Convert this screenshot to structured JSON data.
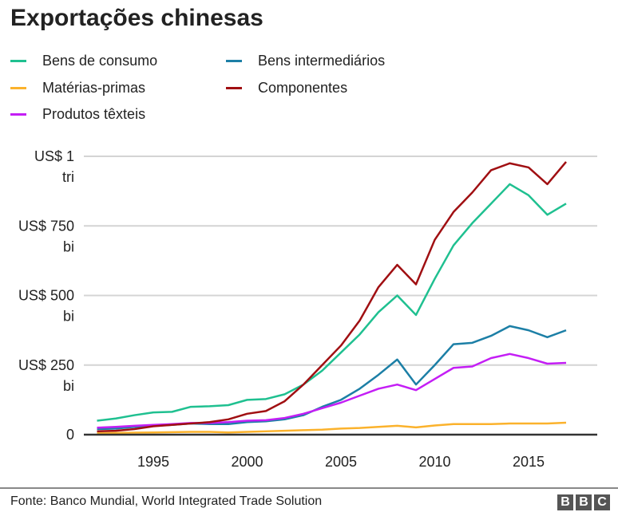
{
  "title": "Exportações chinesas",
  "source": "Fonte: Banco Mundial, World Integrated Trade Solution",
  "logo": "BBC",
  "chart_data": {
    "type": "line",
    "title": "Exportações chinesas",
    "x": [
      1992,
      1993,
      1994,
      1995,
      1996,
      1997,
      1998,
      1999,
      2000,
      2001,
      2002,
      2003,
      2004,
      2005,
      2006,
      2007,
      2008,
      2009,
      2010,
      2011,
      2012,
      2013,
      2014,
      2015,
      2016,
      2017
    ],
    "x_ticks": [
      "1995",
      "2000",
      "2005",
      "2010",
      "2015"
    ],
    "x_tick_values": [
      1995,
      2000,
      2005,
      2010,
      2015
    ],
    "y_ticks": [
      {
        "value": 0,
        "label": [
          "0"
        ]
      },
      {
        "value": 250,
        "label": [
          "US$ 250",
          "bi"
        ]
      },
      {
        "value": 500,
        "label": [
          "US$ 500",
          "bi"
        ]
      },
      {
        "value": 750,
        "label": [
          "US$ 750",
          "bi"
        ]
      },
      {
        "value": 1000,
        "label": [
          "US$ 1",
          "tri"
        ]
      }
    ],
    "ylim": [
      0,
      1000
    ],
    "y_unit": "US$ bilhões",
    "grid": true,
    "legend_position": "top",
    "series": [
      {
        "name": "Bens de consumo",
        "color": "#1fc090",
        "values": [
          50,
          58,
          70,
          80,
          82,
          100,
          102,
          106,
          125,
          128,
          145,
          180,
          230,
          295,
          360,
          440,
          500,
          430,
          560,
          680,
          760,
          830,
          900,
          860,
          790,
          830
        ]
      },
      {
        "name": "Bens intermediários",
        "color": "#1c7fa6",
        "values": [
          20,
          22,
          28,
          32,
          35,
          40,
          38,
          38,
          45,
          48,
          55,
          70,
          100,
          125,
          165,
          215,
          270,
          180,
          250,
          325,
          330,
          355,
          390,
          375,
          350,
          375
        ]
      },
      {
        "name": "Matérias-primas",
        "color": "#fbb22c",
        "values": [
          5,
          6,
          7,
          8,
          9,
          10,
          10,
          8,
          10,
          12,
          14,
          16,
          18,
          22,
          24,
          28,
          32,
          26,
          33,
          38,
          38,
          38,
          40,
          40,
          40,
          43
        ]
      },
      {
        "name": "Componentes",
        "color": "#a00f12",
        "values": [
          12,
          14,
          20,
          30,
          35,
          40,
          45,
          55,
          75,
          85,
          120,
          180,
          250,
          320,
          410,
          530,
          610,
          540,
          700,
          800,
          870,
          950,
          975,
          960,
          900,
          980
        ]
      },
      {
        "name": "Produtos têxteis",
        "color": "#c41ef5",
        "values": [
          25,
          28,
          32,
          35,
          38,
          42,
          42,
          45,
          50,
          52,
          60,
          75,
          95,
          115,
          140,
          165,
          180,
          160,
          200,
          240,
          245,
          275,
          290,
          275,
          255,
          258
        ]
      }
    ]
  }
}
